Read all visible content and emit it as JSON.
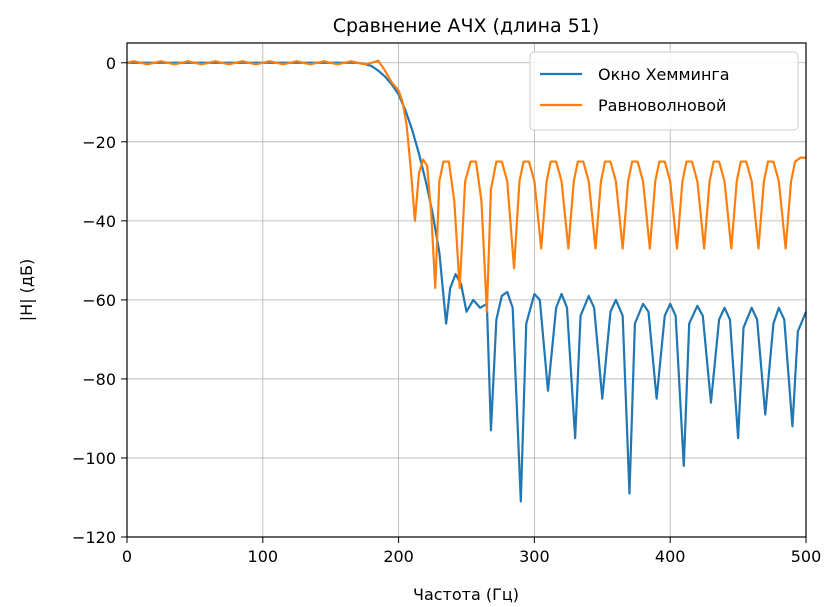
{
  "chart_data": {
    "type": "line",
    "title": "Сравнение АЧХ (длина 51)",
    "xlabel": "Частота (Гц)",
    "ylabel": "|H| (дБ)",
    "xlim": [
      0,
      500
    ],
    "ylim": [
      -120,
      5
    ],
    "xticks": [
      0,
      100,
      200,
      300,
      400,
      500
    ],
    "yticks": [
      0,
      -20,
      -40,
      -60,
      -80,
      -100,
      -120
    ],
    "xtick_labels": [
      "0",
      "100",
      "200",
      "300",
      "400",
      "500"
    ],
    "ytick_labels": [
      "0",
      "−20",
      "−40",
      "−60",
      "−80",
      "−100",
      "−120"
    ],
    "grid": true,
    "legend_position": "top-right",
    "series": [
      {
        "name": "Окно Хемминга",
        "color": "#1f77b4",
        "points": [
          [
            0,
            0
          ],
          [
            20,
            0
          ],
          [
            40,
            0
          ],
          [
            60,
            0
          ],
          [
            80,
            0
          ],
          [
            100,
            0
          ],
          [
            120,
            0
          ],
          [
            140,
            0
          ],
          [
            160,
            0
          ],
          [
            170,
            0
          ],
          [
            175,
            -0.3
          ],
          [
            180,
            -0.8
          ],
          [
            185,
            -2
          ],
          [
            190,
            -3.5
          ],
          [
            195,
            -5.5
          ],
          [
            200,
            -8
          ],
          [
            205,
            -12
          ],
          [
            210,
            -17
          ],
          [
            215,
            -23
          ],
          [
            220,
            -30
          ],
          [
            225,
            -38
          ],
          [
            230,
            -48
          ],
          [
            235,
            -66
          ],
          [
            238,
            -57
          ],
          [
            242,
            -53.5
          ],
          [
            246,
            -56
          ],
          [
            250,
            -63
          ],
          [
            255,
            -60
          ],
          [
            260,
            -62
          ],
          [
            265,
            -61
          ],
          [
            268,
            -93
          ],
          [
            272,
            -65
          ],
          [
            276,
            -59
          ],
          [
            280,
            -58
          ],
          [
            284,
            -62
          ],
          [
            290,
            -111
          ],
          [
            294,
            -66
          ],
          [
            300,
            -58.5
          ],
          [
            304,
            -60
          ],
          [
            310,
            -83
          ],
          [
            316,
            -62
          ],
          [
            320,
            -58.5
          ],
          [
            324,
            -62
          ],
          [
            330,
            -95
          ],
          [
            334,
            -64
          ],
          [
            340,
            -59
          ],
          [
            344,
            -62
          ],
          [
            350,
            -85
          ],
          [
            356,
            -63
          ],
          [
            360,
            -60
          ],
          [
            365,
            -64
          ],
          [
            370,
            -109
          ],
          [
            374,
            -66
          ],
          [
            380,
            -61
          ],
          [
            384,
            -63
          ],
          [
            390,
            -85
          ],
          [
            396,
            -64
          ],
          [
            400,
            -61
          ],
          [
            404,
            -64
          ],
          [
            410,
            -102
          ],
          [
            414,
            -66
          ],
          [
            420,
            -61.5
          ],
          [
            424,
            -64
          ],
          [
            430,
            -86
          ],
          [
            436,
            -65
          ],
          [
            440,
            -62
          ],
          [
            444,
            -65
          ],
          [
            450,
            -95
          ],
          [
            454,
            -67
          ],
          [
            460,
            -62
          ],
          [
            464,
            -65
          ],
          [
            470,
            -89
          ],
          [
            476,
            -66
          ],
          [
            480,
            -62
          ],
          [
            484,
            -65
          ],
          [
            490,
            -92
          ],
          [
            494,
            -68
          ],
          [
            500,
            -63
          ]
        ]
      },
      {
        "name": "Равноволновой",
        "color": "#ff7f0e",
        "points": [
          [
            0,
            0
          ],
          [
            5,
            0.4
          ],
          [
            10,
            0
          ],
          [
            15,
            -0.4
          ],
          [
            20,
            0
          ],
          [
            25,
            0.4
          ],
          [
            30,
            0
          ],
          [
            35,
            -0.4
          ],
          [
            40,
            0
          ],
          [
            45,
            0.4
          ],
          [
            50,
            0
          ],
          [
            55,
            -0.4
          ],
          [
            60,
            0
          ],
          [
            65,
            0.4
          ],
          [
            70,
            0
          ],
          [
            75,
            -0.4
          ],
          [
            80,
            0
          ],
          [
            85,
            0.4
          ],
          [
            90,
            0
          ],
          [
            95,
            -0.4
          ],
          [
            100,
            0
          ],
          [
            105,
            0.4
          ],
          [
            110,
            0
          ],
          [
            115,
            -0.4
          ],
          [
            120,
            0
          ],
          [
            125,
            0.4
          ],
          [
            130,
            0
          ],
          [
            135,
            -0.4
          ],
          [
            140,
            0
          ],
          [
            145,
            0.4
          ],
          [
            150,
            0
          ],
          [
            155,
            -0.4
          ],
          [
            160,
            0
          ],
          [
            165,
            0.4
          ],
          [
            170,
            0
          ],
          [
            175,
            -0.4
          ],
          [
            180,
            0
          ],
          [
            185,
            0.5
          ],
          [
            190,
            -2
          ],
          [
            195,
            -5
          ],
          [
            200,
            -7
          ],
          [
            203,
            -10
          ],
          [
            206,
            -16
          ],
          [
            209,
            -27
          ],
          [
            212,
            -40
          ],
          [
            215,
            -28
          ],
          [
            218,
            -24.5
          ],
          [
            221,
            -26
          ],
          [
            224,
            -38
          ],
          [
            227,
            -57
          ],
          [
            230,
            -30
          ],
          [
            233,
            -25
          ],
          [
            237,
            -25
          ],
          [
            241,
            -35
          ],
          [
            245,
            -57
          ],
          [
            249,
            -30
          ],
          [
            253,
            -25
          ],
          [
            257,
            -25
          ],
          [
            261,
            -35
          ],
          [
            265,
            -63
          ],
          [
            268,
            -32
          ],
          [
            272,
            -25
          ],
          [
            276,
            -25
          ],
          [
            280,
            -30
          ],
          [
            285,
            -52
          ],
          [
            289,
            -30
          ],
          [
            292,
            -25
          ],
          [
            296,
            -25
          ],
          [
            300,
            -30
          ],
          [
            305,
            -47
          ],
          [
            309,
            -30
          ],
          [
            312,
            -25
          ],
          [
            316,
            -25
          ],
          [
            320,
            -30
          ],
          [
            325,
            -47
          ],
          [
            329,
            -30
          ],
          [
            332,
            -25
          ],
          [
            336,
            -25
          ],
          [
            340,
            -30
          ],
          [
            345,
            -47
          ],
          [
            349,
            -30
          ],
          [
            352,
            -25
          ],
          [
            356,
            -25
          ],
          [
            360,
            -30
          ],
          [
            365,
            -47
          ],
          [
            369,
            -30
          ],
          [
            372,
            -25
          ],
          [
            376,
            -25
          ],
          [
            380,
            -30
          ],
          [
            385,
            -47
          ],
          [
            389,
            -30
          ],
          [
            392,
            -25
          ],
          [
            396,
            -25
          ],
          [
            400,
            -30
          ],
          [
            405,
            -47
          ],
          [
            409,
            -30
          ],
          [
            412,
            -25
          ],
          [
            416,
            -25
          ],
          [
            420,
            -30
          ],
          [
            425,
            -47
          ],
          [
            429,
            -30
          ],
          [
            432,
            -25
          ],
          [
            436,
            -25
          ],
          [
            440,
            -30
          ],
          [
            445,
            -47
          ],
          [
            449,
            -30
          ],
          [
            452,
            -25
          ],
          [
            456,
            -25
          ],
          [
            460,
            -30
          ],
          [
            465,
            -47
          ],
          [
            469,
            -30
          ],
          [
            472,
            -25
          ],
          [
            476,
            -25
          ],
          [
            480,
            -30
          ],
          [
            485,
            -47
          ],
          [
            489,
            -30
          ],
          [
            492,
            -25
          ],
          [
            496,
            -24
          ],
          [
            500,
            -24
          ]
        ]
      }
    ]
  }
}
